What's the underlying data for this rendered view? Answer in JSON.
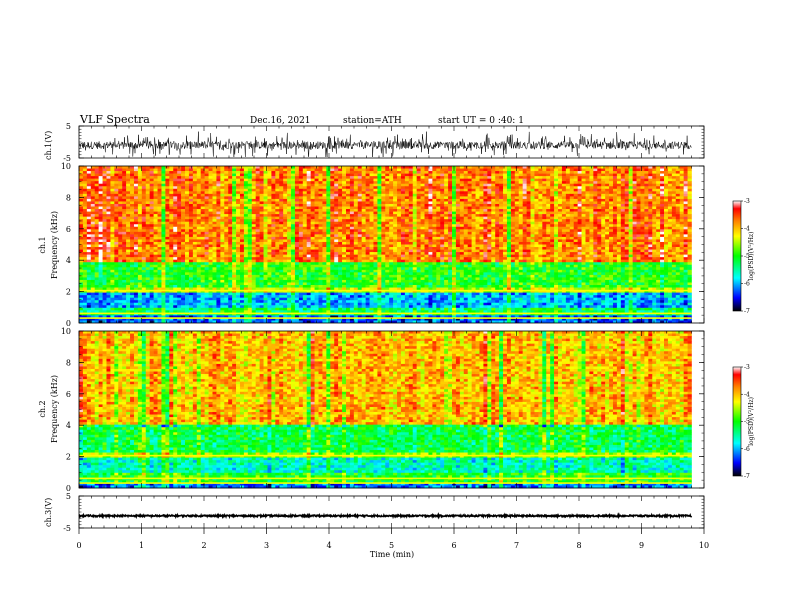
{
  "header": {
    "title": "VLF  Spectra",
    "date": "Dec.16, 2021",
    "station": "station=ATH",
    "start": "start  UT  =    0  :40: 1"
  },
  "chart_data": [
    {
      "type": "line",
      "panel": "ch1-waveform",
      "ylabel": "ch.1(V)",
      "ylim": [
        -5,
        5
      ],
      "yticks": [
        "5",
        "-5"
      ],
      "xlim": [
        0,
        10
      ],
      "trace": {
        "baseline": -1.0,
        "noise_amplitude": 1.2,
        "spike_amplitude": 3.5,
        "color": "#000000"
      }
    },
    {
      "type": "heatmap",
      "panel": "ch1-spectrogram",
      "ylabel": "ch.1\nFrequency  (kHz)",
      "ylim": [
        0,
        10
      ],
      "yticks": [
        "0",
        "2",
        "4",
        "6",
        "8",
        "10"
      ],
      "xlim": [
        0,
        10
      ],
      "data_end_min": 9.8,
      "gap_khz": [
        0.0,
        -0.3
      ],
      "bands": [
        {
          "from_khz": 0.0,
          "to_khz": 0.5,
          "level": -6.3
        },
        {
          "from_khz": 0.5,
          "to_khz": 1.0,
          "level": -5.3
        },
        {
          "from_khz": 1.0,
          "to_khz": 2.0,
          "level": -6.0
        },
        {
          "from_khz": 2.0,
          "to_khz": 2.3,
          "level": -4.5
        },
        {
          "from_khz": 2.3,
          "to_khz": 3.8,
          "level": -5.0
        },
        {
          "from_khz": 3.8,
          "to_khz": 10.0,
          "level": -3.7
        }
      ]
    },
    {
      "type": "heatmap",
      "panel": "ch2-spectrogram",
      "ylabel": "ch.2\nFrequency  (kHz)",
      "ylim": [
        0,
        10
      ],
      "yticks": [
        "0",
        "2",
        "4",
        "6",
        "8",
        "10"
      ],
      "xlim": [
        0,
        10
      ],
      "data_end_min": 9.8,
      "bands": [
        {
          "from_khz": 0.0,
          "to_khz": 0.4,
          "level": -6.2
        },
        {
          "from_khz": 0.4,
          "to_khz": 1.0,
          "level": -5.0
        },
        {
          "from_khz": 1.0,
          "to_khz": 2.0,
          "level": -5.6
        },
        {
          "from_khz": 2.0,
          "to_khz": 2.3,
          "level": -4.6
        },
        {
          "from_khz": 2.3,
          "to_khz": 4.0,
          "level": -5.2
        },
        {
          "from_khz": 4.0,
          "to_khz": 10.0,
          "level": -4.0
        }
      ]
    },
    {
      "type": "line",
      "panel": "ch3-waveform",
      "ylabel": "ch.3(V)",
      "ylim": [
        -5,
        5
      ],
      "yticks": [
        "5",
        "-5"
      ],
      "xlim": [
        0,
        10
      ],
      "trace": {
        "baseline": -1.2,
        "noise_amplitude": 0.25,
        "spike_amplitude": 0.0,
        "color": "#000000"
      }
    }
  ],
  "xaxis": {
    "label": "Time  (min)",
    "ticks": [
      "0",
      "1",
      "2",
      "3",
      "4",
      "5",
      "6",
      "7",
      "8",
      "9",
      "10"
    ]
  },
  "colorbar": {
    "label": "log(PSD)(V²/Hz)",
    "range": [
      -7,
      -3
    ],
    "ticks": [
      "-3",
      "-4",
      "-5",
      "-6",
      "-7"
    ]
  }
}
